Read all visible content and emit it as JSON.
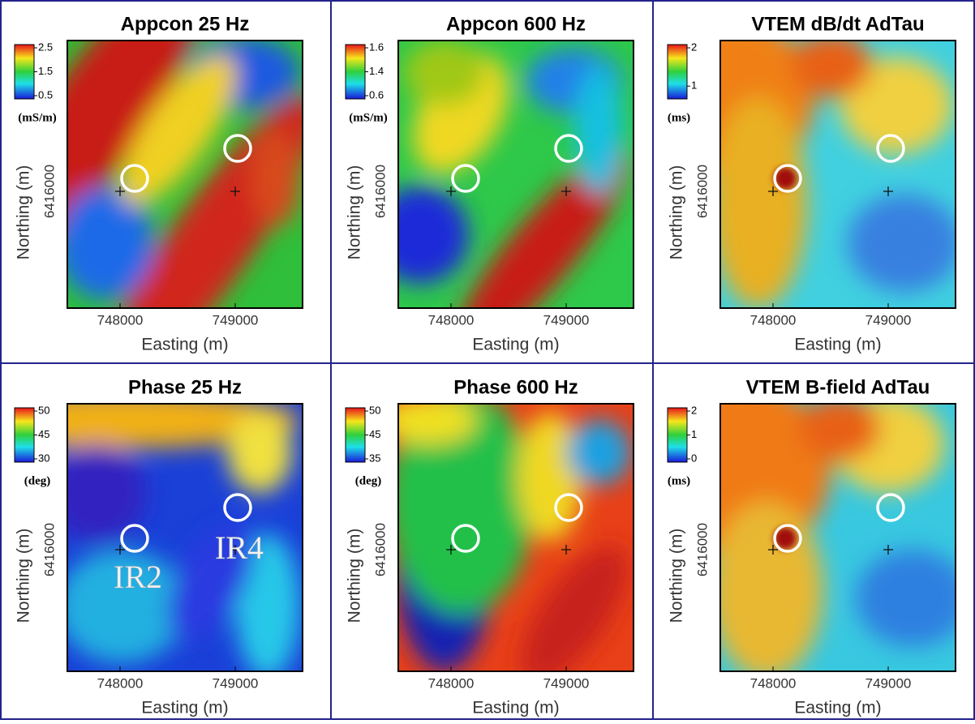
{
  "x_label": "Easting (m)",
  "y_label": "Northing (m)",
  "x_ticks": [
    "748000",
    "749000"
  ],
  "y_tick": "6416000",
  "panels": [
    {
      "title": "Appcon 25 Hz",
      "colorbar_ticks": [
        "2.5",
        "1.5",
        "0.5"
      ],
      "unit": "(mS/m)"
    },
    {
      "title": "Appcon 600 Hz",
      "colorbar_ticks": [
        "1.6",
        "1.4",
        "0.6"
      ],
      "unit": "(mS/m)"
    },
    {
      "title": "VTEM dB/dt AdTau",
      "colorbar_ticks": [
        "2",
        "1"
      ],
      "unit": "(ms)"
    },
    {
      "title": "Phase 25 Hz",
      "colorbar_ticks": [
        "50",
        "45",
        "30"
      ],
      "unit": "(deg)",
      "annotations": [
        "IR2",
        "IR4"
      ]
    },
    {
      "title": "Phase 600 Hz",
      "colorbar_ticks": [
        "50",
        "45",
        "35"
      ],
      "unit": "(deg)"
    },
    {
      "title": "VTEM B-field AdTau",
      "colorbar_ticks": [
        "2",
        "1",
        "0"
      ],
      "unit": "(ms)"
    }
  ]
}
